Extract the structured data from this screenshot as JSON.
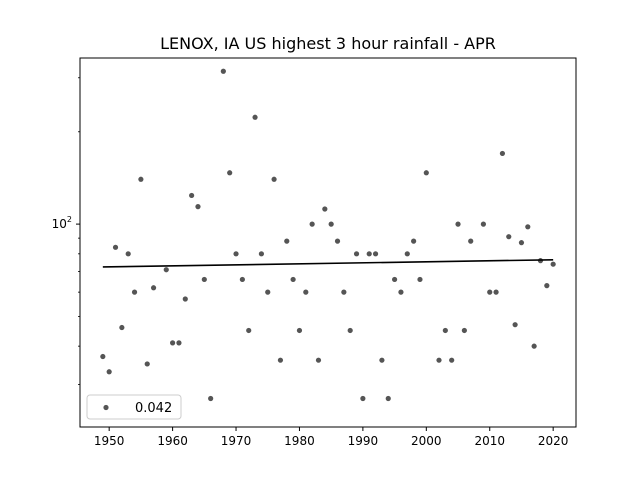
{
  "chart_data": {
    "type": "scatter",
    "title": "LENOX, IA US highest 3 hour rainfall - APR",
    "xlabel": "",
    "ylabel": "",
    "yscale": "log",
    "xlim": [
      1945.4,
      2023.6
    ],
    "ylim": [
      21.8,
      348
    ],
    "xticks": [
      1950,
      1960,
      1970,
      1980,
      1990,
      2000,
      2010,
      2020
    ],
    "yticks": [
      {
        "value": 100,
        "label": "10^2"
      }
    ],
    "grid": false,
    "legend": {
      "placement": "lower-left",
      "entries": [
        "0.042"
      ]
    },
    "colors": {
      "points": "#555555",
      "trend": "#000000"
    },
    "points": [
      {
        "x": 1949,
        "y": 37
      },
      {
        "x": 1950,
        "y": 33
      },
      {
        "x": 1951,
        "y": 84
      },
      {
        "x": 1952,
        "y": 46
      },
      {
        "x": 1953,
        "y": 80
      },
      {
        "x": 1954,
        "y": 60
      },
      {
        "x": 1955,
        "y": 140
      },
      {
        "x": 1956,
        "y": 35
      },
      {
        "x": 1957,
        "y": 62
      },
      {
        "x": 1959,
        "y": 71
      },
      {
        "x": 1960,
        "y": 41
      },
      {
        "x": 1961,
        "y": 41
      },
      {
        "x": 1962,
        "y": 57
      },
      {
        "x": 1963,
        "y": 124
      },
      {
        "x": 1964,
        "y": 114
      },
      {
        "x": 1965,
        "y": 66
      },
      {
        "x": 1966,
        "y": 27
      },
      {
        "x": 1968,
        "y": 315
      },
      {
        "x": 1969,
        "y": 147
      },
      {
        "x": 1970,
        "y": 80
      },
      {
        "x": 1971,
        "y": 66
      },
      {
        "x": 1972,
        "y": 45
      },
      {
        "x": 1973,
        "y": 223
      },
      {
        "x": 1974,
        "y": 80
      },
      {
        "x": 1975,
        "y": 60
      },
      {
        "x": 1976,
        "y": 140
      },
      {
        "x": 1977,
        "y": 36
      },
      {
        "x": 1978,
        "y": 88
      },
      {
        "x": 1979,
        "y": 66
      },
      {
        "x": 1980,
        "y": 45
      },
      {
        "x": 1981,
        "y": 60
      },
      {
        "x": 1982,
        "y": 100
      },
      {
        "x": 1983,
        "y": 36
      },
      {
        "x": 1984,
        "y": 112
      },
      {
        "x": 1985,
        "y": 100
      },
      {
        "x": 1986,
        "y": 88
      },
      {
        "x": 1987,
        "y": 60
      },
      {
        "x": 1988,
        "y": 45
      },
      {
        "x": 1989,
        "y": 80
      },
      {
        "x": 1990,
        "y": 27
      },
      {
        "x": 1991,
        "y": 80
      },
      {
        "x": 1992,
        "y": 80
      },
      {
        "x": 1993,
        "y": 36
      },
      {
        "x": 1994,
        "y": 27
      },
      {
        "x": 1995,
        "y": 66
      },
      {
        "x": 1996,
        "y": 60
      },
      {
        "x": 1997,
        "y": 80
      },
      {
        "x": 1998,
        "y": 88
      },
      {
        "x": 1999,
        "y": 66
      },
      {
        "x": 2000,
        "y": 147
      },
      {
        "x": 2002,
        "y": 36
      },
      {
        "x": 2003,
        "y": 45
      },
      {
        "x": 2004,
        "y": 36
      },
      {
        "x": 2005,
        "y": 100
      },
      {
        "x": 2006,
        "y": 45
      },
      {
        "x": 2007,
        "y": 88
      },
      {
        "x": 2009,
        "y": 100
      },
      {
        "x": 2010,
        "y": 60
      },
      {
        "x": 2011,
        "y": 60
      },
      {
        "x": 2012,
        "y": 170
      },
      {
        "x": 2013,
        "y": 91
      },
      {
        "x": 2014,
        "y": 47
      },
      {
        "x": 2015,
        "y": 87
      },
      {
        "x": 2016,
        "y": 98
      },
      {
        "x": 2017,
        "y": 40
      },
      {
        "x": 2018,
        "y": 76
      },
      {
        "x": 2019,
        "y": 63
      },
      {
        "x": 2020,
        "y": 74
      }
    ],
    "trendline": {
      "x": [
        1949,
        2020
      ],
      "y": [
        72.5,
        76.5
      ]
    }
  }
}
